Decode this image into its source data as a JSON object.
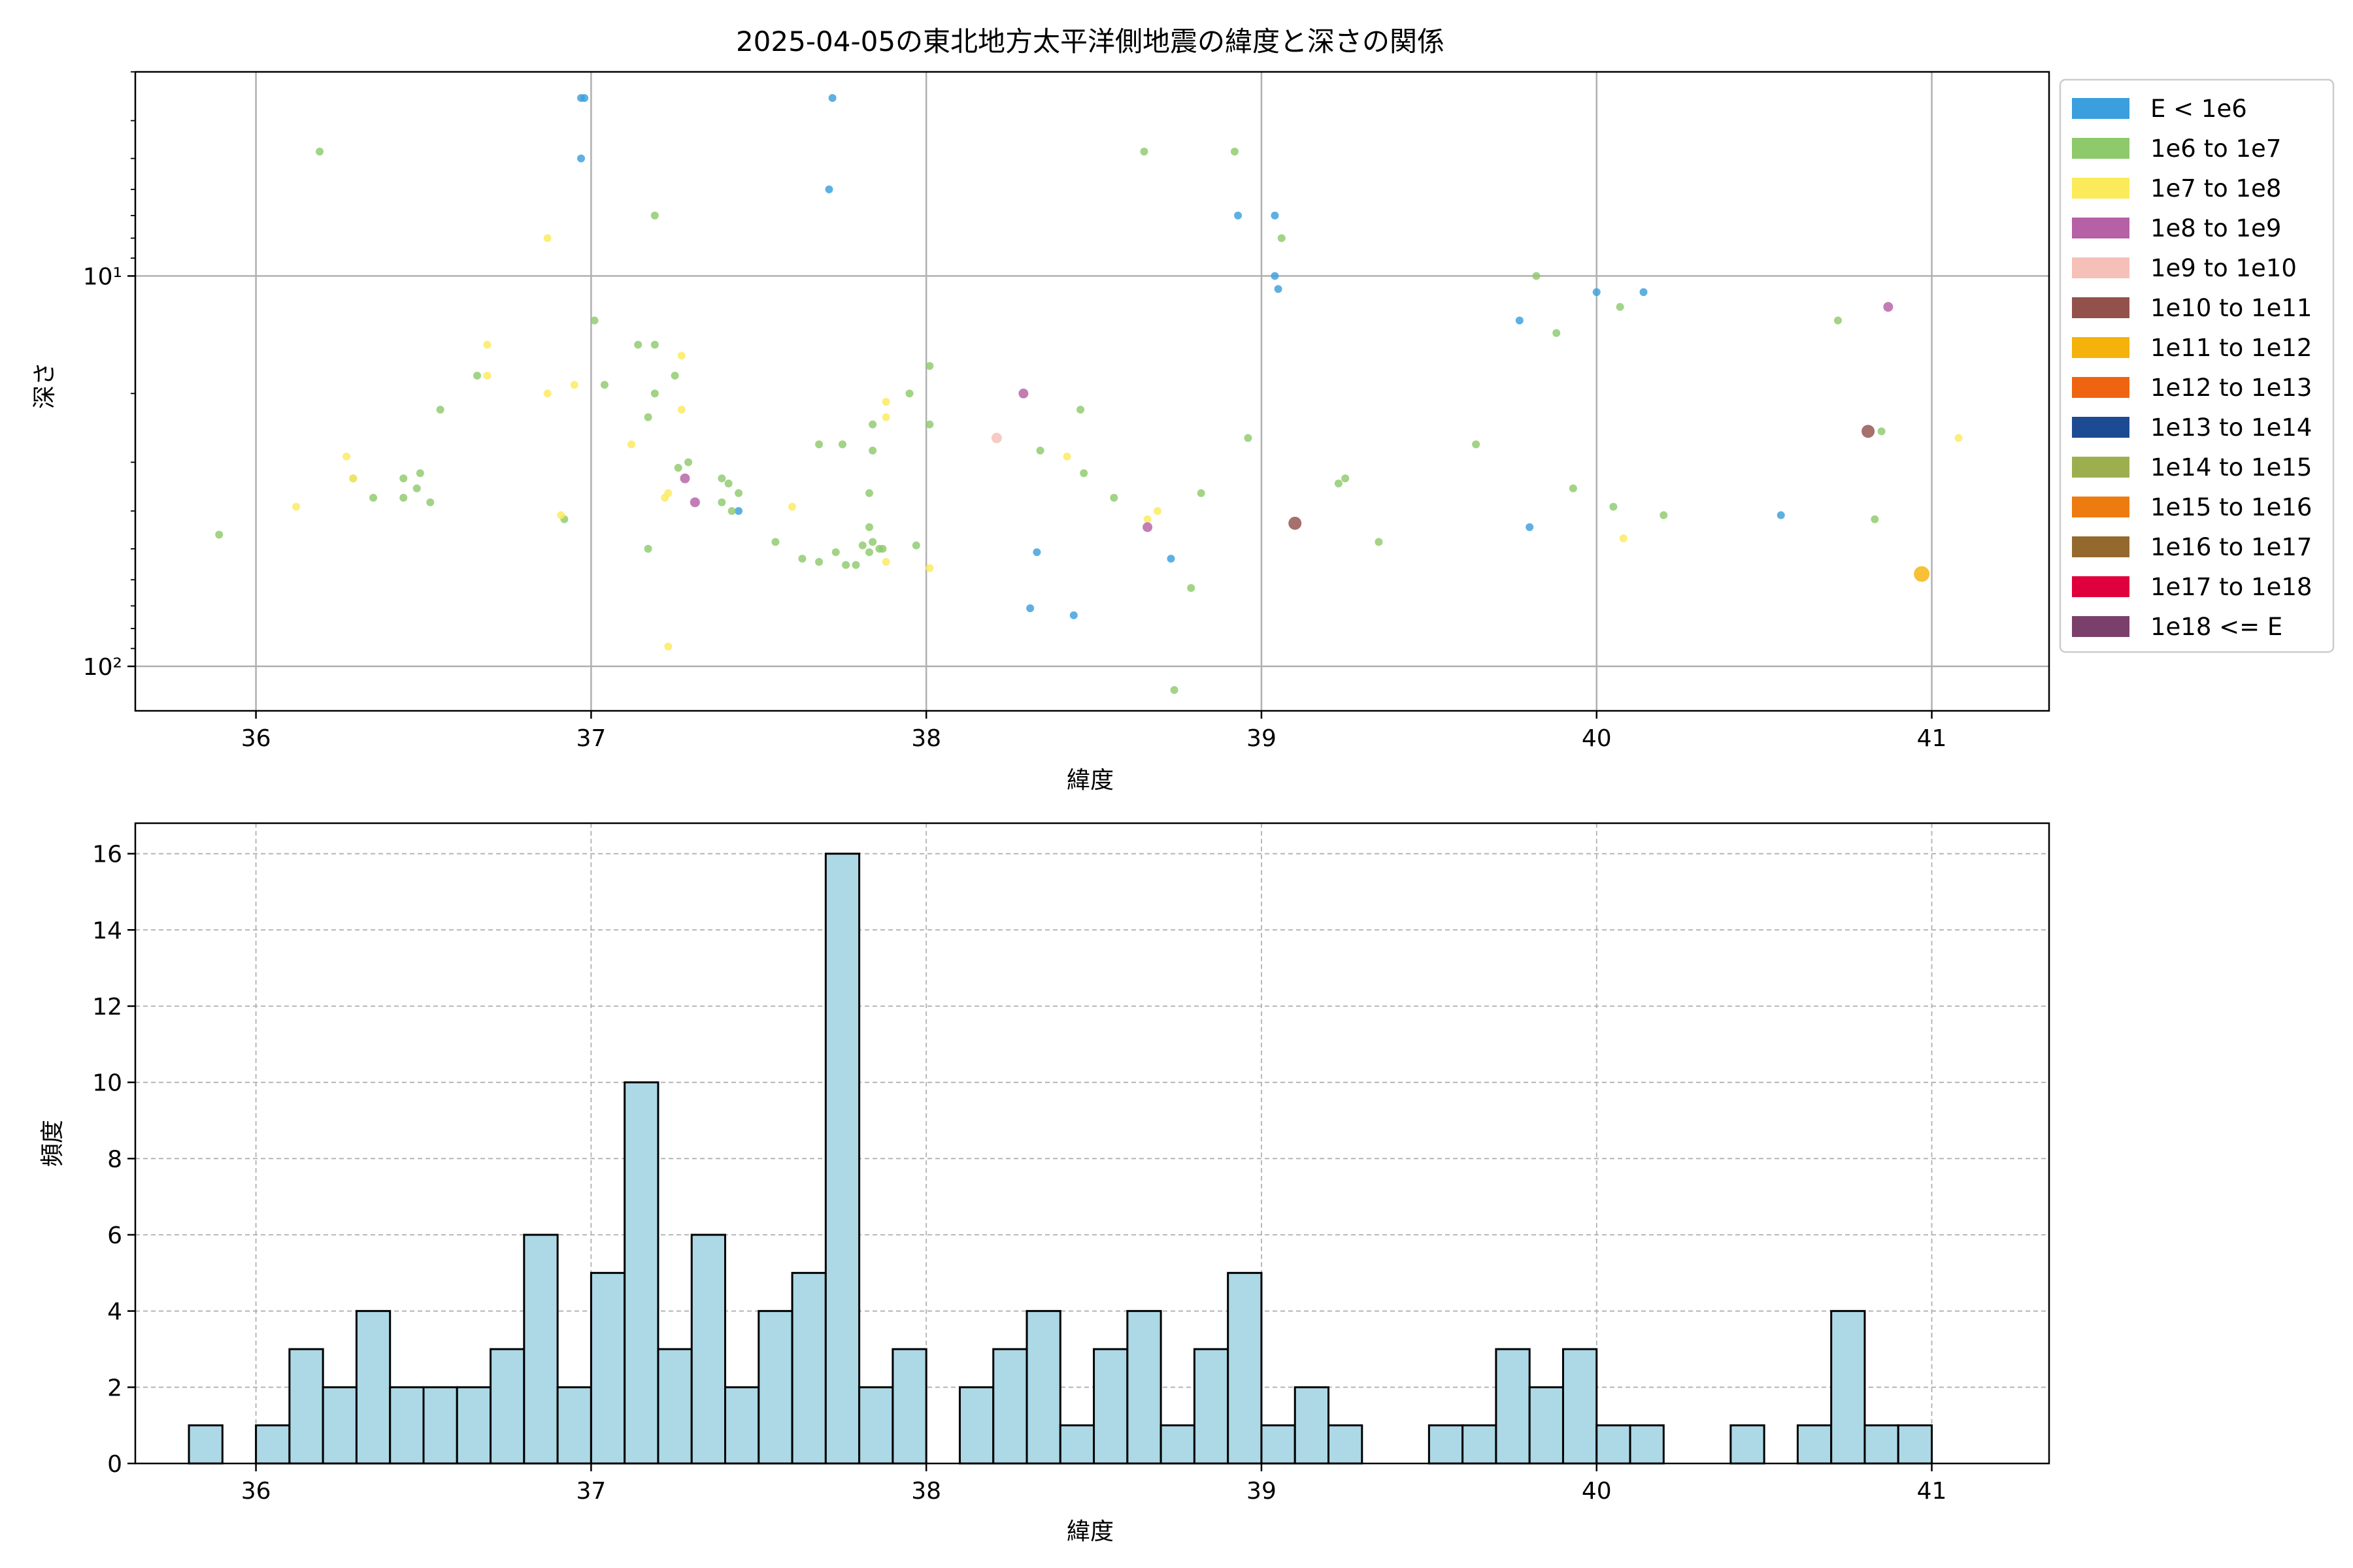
{
  "figure": {
    "title": "2025-04-05の東北地方太平洋側地震の緯度と深さの関係"
  },
  "legend": {
    "placement": "outside-right",
    "entries": [
      {
        "label": "E < 1e6",
        "color": "#3a9fdc"
      },
      {
        "label": "1e6 to 1e7",
        "color": "#8ec96b"
      },
      {
        "label": "1e7 to 1e8",
        "color": "#fbea5a"
      },
      {
        "label": "1e8 to 1e9",
        "color": "#b660a6"
      },
      {
        "label": "1e9 to 1e10",
        "color": "#f5c0b8"
      },
      {
        "label": "1e10 to 1e11",
        "color": "#93514c"
      },
      {
        "label": "1e11 to 1e12",
        "color": "#f5b20a"
      },
      {
        "label": "1e12 to 1e13",
        "color": "#ef6410"
      },
      {
        "label": "1e13 to 1e14",
        "color": "#1d4b93"
      },
      {
        "label": "1e14 to 1e15",
        "color": "#9caf4f"
      },
      {
        "label": "1e15 to 1e16",
        "color": "#ee7b10"
      },
      {
        "label": "1e16 to 1e17",
        "color": "#93692d"
      },
      {
        "label": "1e17 to 1e18",
        "color": "#df003c"
      },
      {
        "label": "1e18 <= E",
        "color": "#7a406b"
      }
    ]
  },
  "chart_data": [
    {
      "type": "scatter",
      "xlabel": "緯度",
      "ylabel": "深さ",
      "xlim": [
        35.64,
        41.35
      ],
      "ylim": [
        130,
        3.0
      ],
      "y_scale": "log",
      "y_inverted": true,
      "x_ticks": [
        36,
        37,
        38,
        39,
        40,
        41
      ],
      "x_tick_labels": [
        "36",
        "37",
        "38",
        "39",
        "40",
        "41"
      ],
      "y_ticks": [
        10,
        100
      ],
      "y_tick_labels": [
        "10¹",
        "10²"
      ],
      "grid": true,
      "series": [
        {
          "legend_index": 0,
          "points": [
            [
              36.97,
              3.5
            ],
            [
              36.98,
              3.5
            ],
            [
              37.72,
              3.5
            ],
            [
              36.97,
              5.0
            ],
            [
              37.71,
              6.0
            ],
            [
              38.93,
              7.0
            ],
            [
              39.04,
              7.0
            ],
            [
              39.04,
              10.0
            ],
            [
              39.05,
              10.8
            ],
            [
              40.0,
              11.0
            ],
            [
              40.14,
              11.0
            ],
            [
              39.77,
              13.0
            ],
            [
              37.44,
              40.0
            ],
            [
              40.55,
              41.0
            ],
            [
              39.8,
              44.0
            ],
            [
              38.33,
              51.0
            ],
            [
              38.73,
              53.0
            ],
            [
              38.31,
              71.0
            ],
            [
              38.44,
              74.0
            ]
          ]
        },
        {
          "legend_index": 1,
          "points": [
            [
              36.19,
              4.8
            ],
            [
              38.65,
              4.8
            ],
            [
              38.92,
              4.8
            ],
            [
              37.19,
              7.0
            ],
            [
              39.06,
              8.0
            ],
            [
              39.82,
              10.0
            ],
            [
              40.07,
              12.0
            ],
            [
              37.01,
              13.0
            ],
            [
              39.88,
              14.0
            ],
            [
              40.72,
              13.0
            ],
            [
              37.14,
              15.0
            ],
            [
              37.19,
              15.0
            ],
            [
              38.01,
              17.0
            ],
            [
              37.25,
              18.0
            ],
            [
              37.04,
              19.0
            ],
            [
              36.66,
              18.0
            ],
            [
              37.95,
              20.0
            ],
            [
              37.19,
              20.0
            ],
            [
              36.55,
              22.0
            ],
            [
              38.46,
              22.0
            ],
            [
              37.17,
              23.0
            ],
            [
              37.84,
              24.0
            ],
            [
              38.01,
              24.0
            ],
            [
              40.85,
              25.0
            ],
            [
              38.96,
              26.0
            ],
            [
              39.64,
              27.0
            ],
            [
              37.68,
              27.0
            ],
            [
              37.75,
              27.0
            ],
            [
              37.84,
              28.0
            ],
            [
              38.34,
              28.0
            ],
            [
              37.29,
              30.0
            ],
            [
              37.26,
              31.0
            ],
            [
              36.49,
              32.0
            ],
            [
              38.47,
              32.0
            ],
            [
              36.29,
              33.0
            ],
            [
              36.44,
              33.0
            ],
            [
              37.39,
              33.0
            ],
            [
              37.41,
              34.0
            ],
            [
              39.25,
              33.0
            ],
            [
              39.23,
              34.0
            ],
            [
              39.93,
              35.0
            ],
            [
              36.48,
              35.0
            ],
            [
              38.82,
              36.0
            ],
            [
              37.44,
              36.0
            ],
            [
              36.35,
              37.0
            ],
            [
              36.44,
              37.0
            ],
            [
              37.83,
              36.0
            ],
            [
              38.56,
              37.0
            ],
            [
              37.39,
              38.0
            ],
            [
              36.52,
              38.0
            ],
            [
              37.42,
              40.0
            ],
            [
              40.05,
              39.0
            ],
            [
              40.2,
              41.0
            ],
            [
              36.92,
              42.0
            ],
            [
              40.83,
              42.0
            ],
            [
              37.83,
              44.0
            ],
            [
              35.89,
              46.0
            ],
            [
              37.55,
              48.0
            ],
            [
              39.35,
              48.0
            ],
            [
              37.84,
              48.0
            ],
            [
              37.81,
              49.0
            ],
            [
              37.87,
              50.0
            ],
            [
              37.86,
              50.0
            ],
            [
              37.83,
              51.0
            ],
            [
              37.97,
              49.0
            ],
            [
              37.17,
              50.0
            ],
            [
              37.73,
              51.0
            ],
            [
              37.63,
              53.0
            ],
            [
              37.68,
              54.0
            ],
            [
              37.79,
              55.0
            ],
            [
              37.76,
              55.0
            ],
            [
              38.79,
              63.0
            ],
            [
              38.74,
              115.0
            ]
          ]
        },
        {
          "legend_index": 2,
          "points": [
            [
              36.87,
              8.0
            ],
            [
              36.69,
              15.0
            ],
            [
              37.27,
              16.0
            ],
            [
              36.69,
              18.0
            ],
            [
              36.95,
              19.0
            ],
            [
              36.87,
              20.0
            ],
            [
              37.88,
              21.0
            ],
            [
              37.27,
              22.0
            ],
            [
              37.88,
              23.0
            ],
            [
              41.08,
              26.0
            ],
            [
              37.12,
              27.0
            ],
            [
              36.27,
              29.0
            ],
            [
              38.42,
              29.0
            ],
            [
              36.29,
              33.0
            ],
            [
              37.23,
              36.0
            ],
            [
              37.22,
              37.0
            ],
            [
              36.12,
              39.0
            ],
            [
              37.6,
              39.0
            ],
            [
              38.69,
              40.0
            ],
            [
              36.91,
              41.0
            ],
            [
              38.66,
              42.0
            ],
            [
              40.08,
              47.0
            ],
            [
              37.88,
              54.0
            ],
            [
              38.01,
              56.0
            ],
            [
              37.23,
              89.0
            ]
          ]
        },
        {
          "legend_index": 3,
          "points": [
            [
              40.87,
              12.0
            ],
            [
              38.29,
              20.0
            ],
            [
              37.28,
              33.0
            ],
            [
              37.31,
              38.0
            ],
            [
              38.66,
              44.0
            ]
          ]
        },
        {
          "legend_index": 4,
          "points": [
            [
              38.21,
              26.0
            ]
          ]
        },
        {
          "legend_index": 5,
          "points": [
            [
              40.81,
              25.0
            ],
            [
              39.1,
              43.0
            ]
          ]
        },
        {
          "legend_index": 6,
          "points": [
            [
              40.97,
              58.0
            ]
          ]
        }
      ]
    },
    {
      "type": "bar",
      "subtype": "histogram",
      "xlabel": "緯度",
      "ylabel": "頻度",
      "xlim": [
        35.64,
        41.35
      ],
      "ylim": [
        0,
        16.8
      ],
      "x_ticks": [
        36,
        37,
        38,
        39,
        40,
        41
      ],
      "x_tick_labels": [
        "36",
        "37",
        "38",
        "39",
        "40",
        "41"
      ],
      "y_ticks": [
        0,
        2,
        4,
        6,
        8,
        10,
        12,
        14,
        16
      ],
      "y_tick_labels": [
        "0",
        "2",
        "4",
        "6",
        "8",
        "10",
        "12",
        "14",
        "16"
      ],
      "grid": true,
      "bar_color": "#add8e6",
      "bin_start": 35.8,
      "bin_width": 0.1,
      "values": [
        1,
        0,
        1,
        3,
        2,
        4,
        2,
        2,
        2,
        3,
        6,
        2,
        5,
        10,
        3,
        6,
        2,
        4,
        5,
        16,
        2,
        3,
        0,
        2,
        3,
        4,
        1,
        3,
        4,
        1,
        3,
        5,
        1,
        2,
        1,
        0,
        0,
        1,
        1,
        3,
        2,
        3,
        1,
        1,
        0,
        0,
        1,
        0,
        1,
        4,
        1,
        1
      ]
    }
  ]
}
